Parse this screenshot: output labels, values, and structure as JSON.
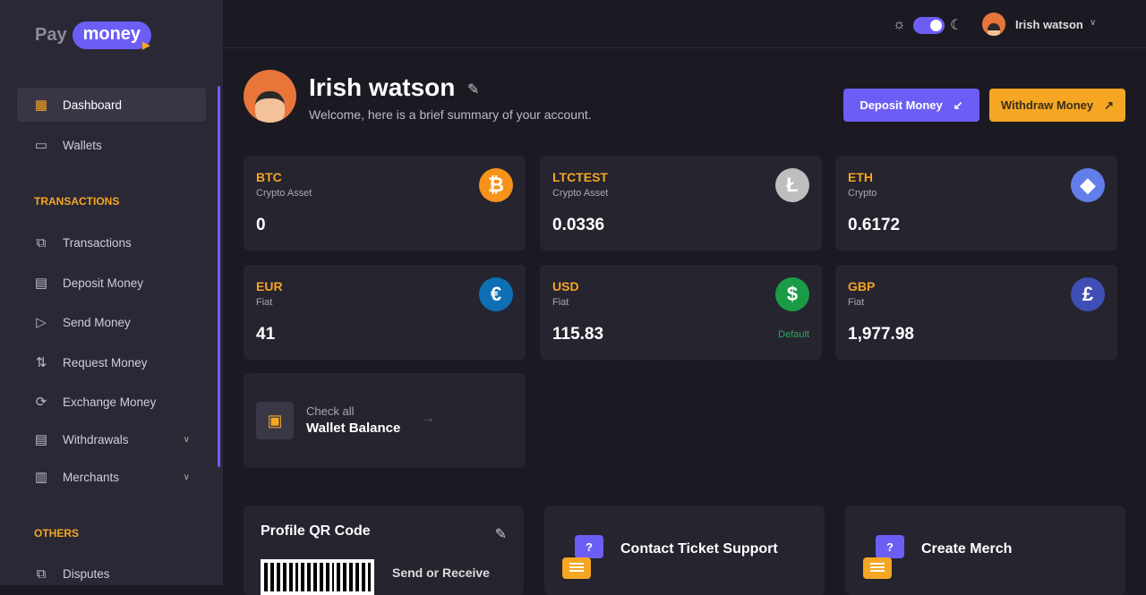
{
  "brand": {
    "pay": "Pay",
    "money": "money"
  },
  "sidebar": {
    "items": [
      {
        "label": "Dashboard",
        "icon": "grid-plus-icon",
        "active": true
      },
      {
        "label": "Wallets",
        "icon": "wallet-icon"
      }
    ],
    "transactions_heading": "TRANSACTIONS",
    "transaction_items": [
      {
        "label": "Transactions",
        "icon": "transactions-icon"
      },
      {
        "label": "Deposit Money",
        "icon": "card-download-icon"
      },
      {
        "label": "Send Money",
        "icon": "send-icon"
      },
      {
        "label": "Request Money",
        "icon": "request-icon"
      },
      {
        "label": "Exchange Money",
        "icon": "exchange-icon"
      },
      {
        "label": "Withdrawals",
        "icon": "card-upload-icon",
        "expandable": true
      },
      {
        "label": "Merchants",
        "icon": "store-icon",
        "expandable": true
      }
    ],
    "others_heading": "OTHERS",
    "other_items": [
      {
        "label": "Disputes",
        "icon": "disputes-icon"
      }
    ]
  },
  "topbar": {
    "user_name": "Irish watson",
    "theme": "dark"
  },
  "header": {
    "name": "Irish watson",
    "welcome": "Welcome, here is a brief summary of your account.",
    "deposit_label": "Deposit Money",
    "withdraw_label": "Withdraw Money"
  },
  "wallets": [
    {
      "code": "BTC",
      "type": "Crypto Asset",
      "balance": "0",
      "icon": "bitcoin-icon",
      "color": "#f7931a",
      "glyph": "₿"
    },
    {
      "code": "LTCTEST",
      "type": "Crypto Asset",
      "balance": "0.0336",
      "icon": "litecoin-icon",
      "color": "#bebebe",
      "glyph": "Ł"
    },
    {
      "code": "ETH",
      "type": "Crypto",
      "balance": "0.6172",
      "icon": "ethereum-icon",
      "color": "#627eea",
      "glyph": "◆"
    },
    {
      "code": "EUR",
      "type": "Fiat",
      "balance": "41",
      "icon": "euro-icon",
      "color": "#0f6fb5",
      "glyph": "€"
    },
    {
      "code": "USD",
      "type": "Fiat",
      "balance": "115.83",
      "icon": "dollar-icon",
      "color": "#1a9b46",
      "glyph": "$",
      "default_label": "Default"
    },
    {
      "code": "GBP",
      "type": "Fiat",
      "balance": "1,977.98",
      "icon": "pound-icon",
      "color": "#3f4fb5",
      "glyph": "£"
    }
  ],
  "wallet_balance": {
    "line1": "Check all",
    "line2": "Wallet Balance"
  },
  "qr_card": {
    "title": "Profile QR Code",
    "subtitle": "Send or Receive"
  },
  "support_card": {
    "title": "Contact Ticket Support"
  },
  "merchant_card": {
    "title": "Create Merch"
  }
}
